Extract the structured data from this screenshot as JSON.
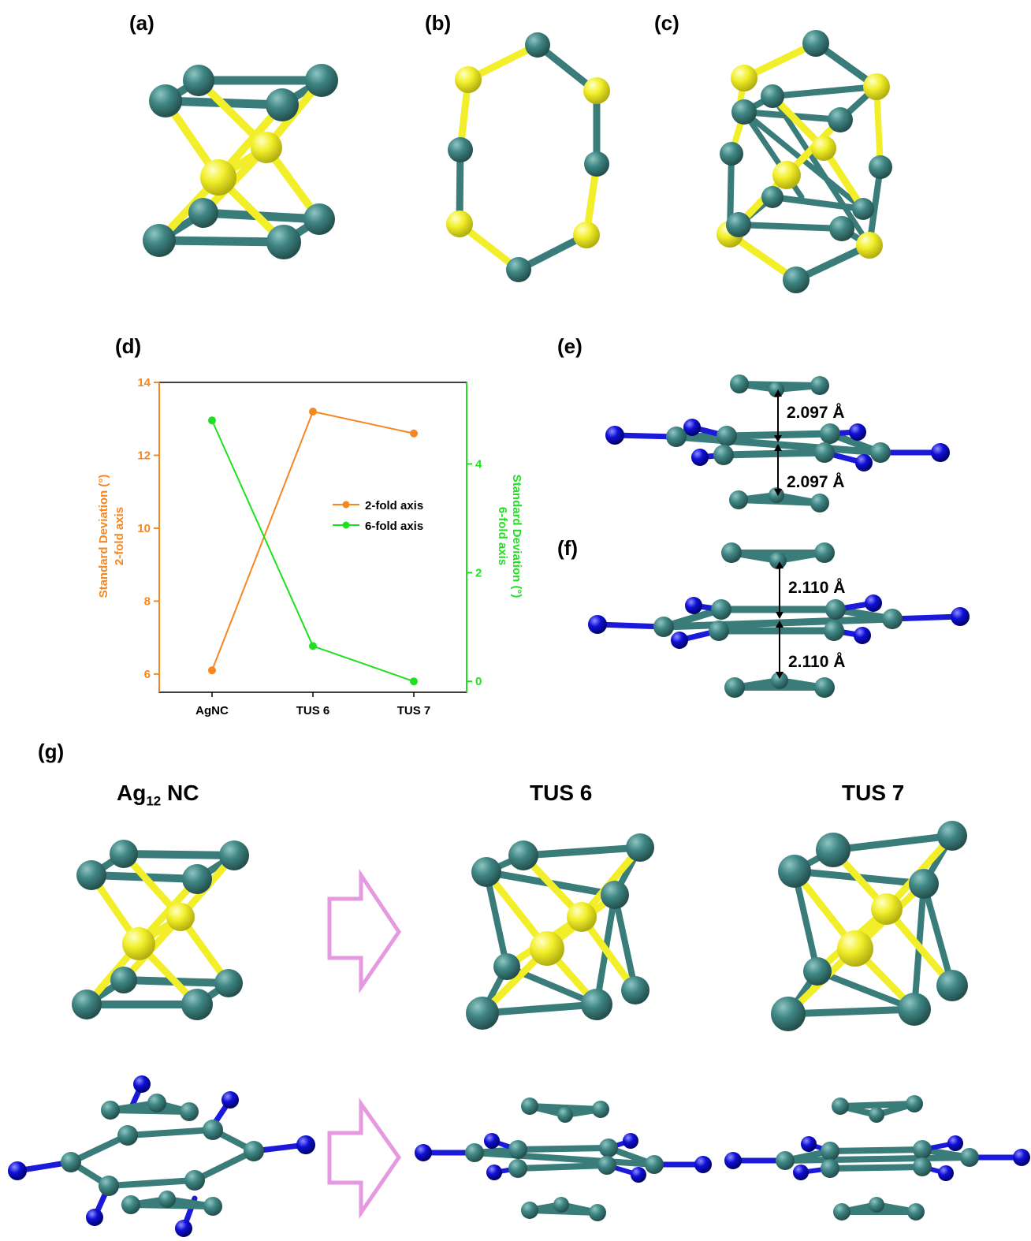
{
  "labels": {
    "a": "(a)",
    "b": "(b)",
    "c": "(c)",
    "d": "(d)",
    "e": "(e)",
    "f": "(f)",
    "g": "(g)"
  },
  "headings": {
    "ag12_base": "Ag",
    "ag12_sub": "12",
    "ag12_rest": " NC",
    "tus6": "TUS 6",
    "tus7": "TUS 7"
  },
  "distances": {
    "e_top": "2.097 Å",
    "e_bottom": "2.097 Å",
    "f_top": "2.110 Å",
    "f_bottom": "2.110 Å"
  },
  "colors": {
    "silver_atom": "#3f8684",
    "sulfur_atom": "#f2ef2a",
    "nitrogen_atom": "#1010d8",
    "series_2fold": "#f5871f",
    "series_6fold": "#1fe01f",
    "arrow": "#e59ae0"
  },
  "chart_data": {
    "type": "line",
    "categories": [
      "AgNC",
      "TUS 6",
      "TUS 7"
    ],
    "y_left": {
      "label_line1": "Standard Deviation (°)",
      "label_line2": "2-fold axis",
      "range": [
        5.5,
        14
      ],
      "ticks": [
        6,
        8,
        10,
        12,
        14
      ]
    },
    "y_right": {
      "label_line1": "Standard Deviation (°)",
      "label_line2": "6-fold axis",
      "range": [
        -0.2,
        5.5
      ],
      "ticks": [
        0,
        2,
        4
      ]
    },
    "series": [
      {
        "name": "2-fold axis",
        "axis": "left",
        "color": "#f5871f",
        "values": [
          6.1,
          13.2,
          12.6
        ]
      },
      {
        "name": "6-fold axis",
        "axis": "right",
        "color": "#1fe01f",
        "values": [
          4.8,
          0.65,
          0.0
        ]
      }
    ],
    "legend_position": "center-right",
    "grid": false
  }
}
